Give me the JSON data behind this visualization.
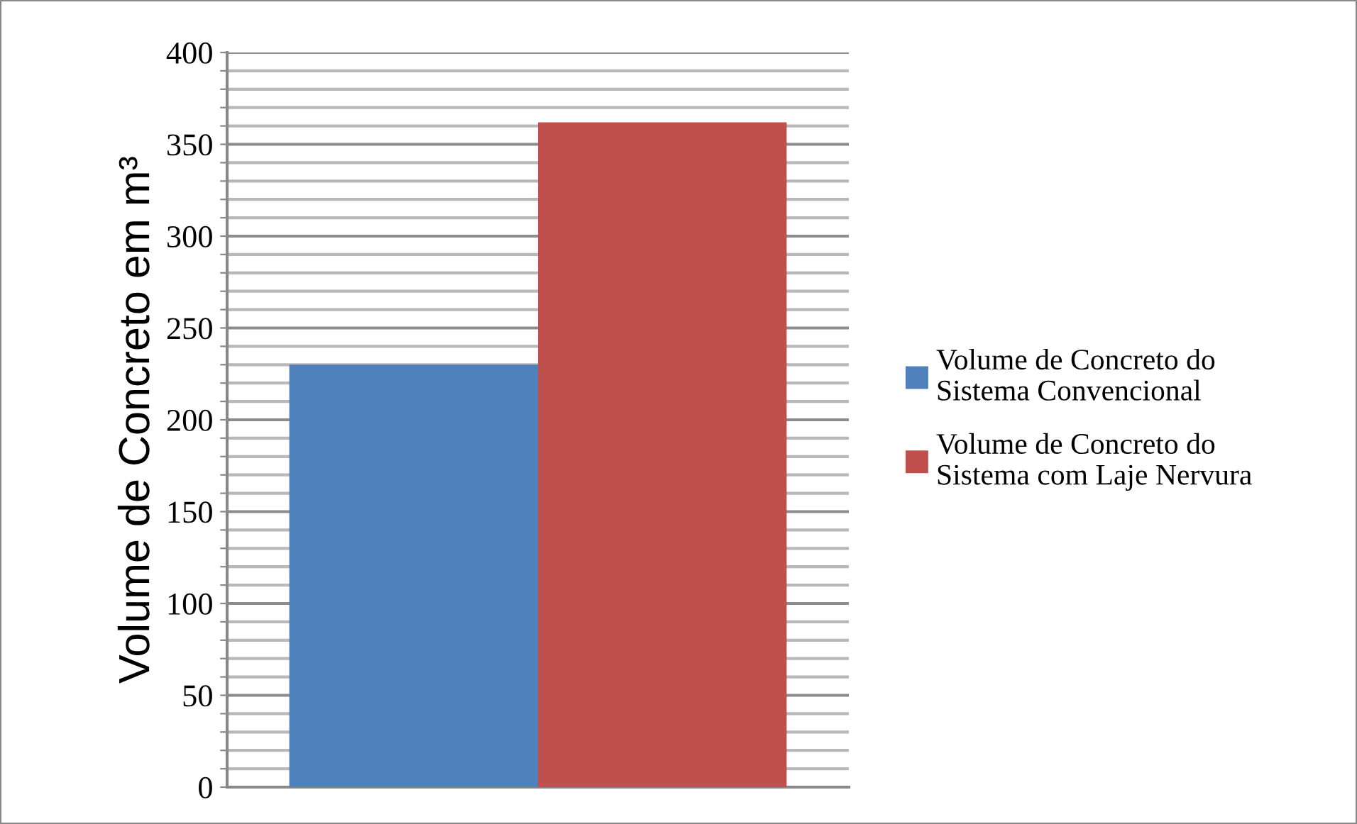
{
  "chart_data": {
    "type": "bar",
    "ylabel": "Volume de Concreto em m³",
    "categories": [
      null
    ],
    "series": [
      {
        "name": "Volume de Concreto do\nSistema Convencional",
        "color": "#4f81bd",
        "values": [
          230
        ]
      },
      {
        "name": "Volume de Concreto do\nSistema com Laje Nervura",
        "color": "#c0504d",
        "values": [
          362
        ]
      }
    ],
    "ylim": [
      0,
      400
    ],
    "yticks": [
      0,
      {
        "value": 10,
        "label": null
      },
      {
        "value": 20,
        "label": null
      },
      {
        "value": 30,
        "label": null
      },
      {
        "value": 40,
        "label": null
      },
      50,
      {
        "value": 60,
        "label": null
      },
      {
        "value": 70,
        "label": null
      },
      {
        "value": 80,
        "label": null
      },
      {
        "value": 90,
        "label": null
      },
      100,
      {
        "value": 110,
        "label": null
      },
      {
        "value": 120,
        "label": null
      },
      {
        "value": 130,
        "label": null
      },
      {
        "value": 140,
        "label": null
      },
      150,
      {
        "value": 160,
        "label": null
      },
      {
        "value": 170,
        "label": null
      },
      {
        "value": 180,
        "label": null
      },
      {
        "value": 190,
        "label": null
      },
      200,
      {
        "value": 210,
        "label": null
      },
      {
        "value": 220,
        "label": null
      },
      {
        "value": 230,
        "label": null
      },
      {
        "value": 240,
        "label": null
      },
      250,
      {
        "value": 260,
        "label": null
      },
      {
        "value": 270,
        "label": null
      },
      {
        "value": 280,
        "label": null
      },
      {
        "value": 290,
        "label": null
      },
      300,
      {
        "value": 310,
        "label": null
      },
      {
        "value": 320,
        "label": null
      },
      {
        "value": 330,
        "label": null
      },
      {
        "value": 340,
        "label": null
      },
      350,
      {
        "value": 360,
        "label": null
      },
      {
        "value": 370,
        "label": null
      },
      {
        "value": 380,
        "label": null
      },
      {
        "value": 390,
        "label": null
      },
      400
    ],
    "grid": "y",
    "legend": "right"
  }
}
